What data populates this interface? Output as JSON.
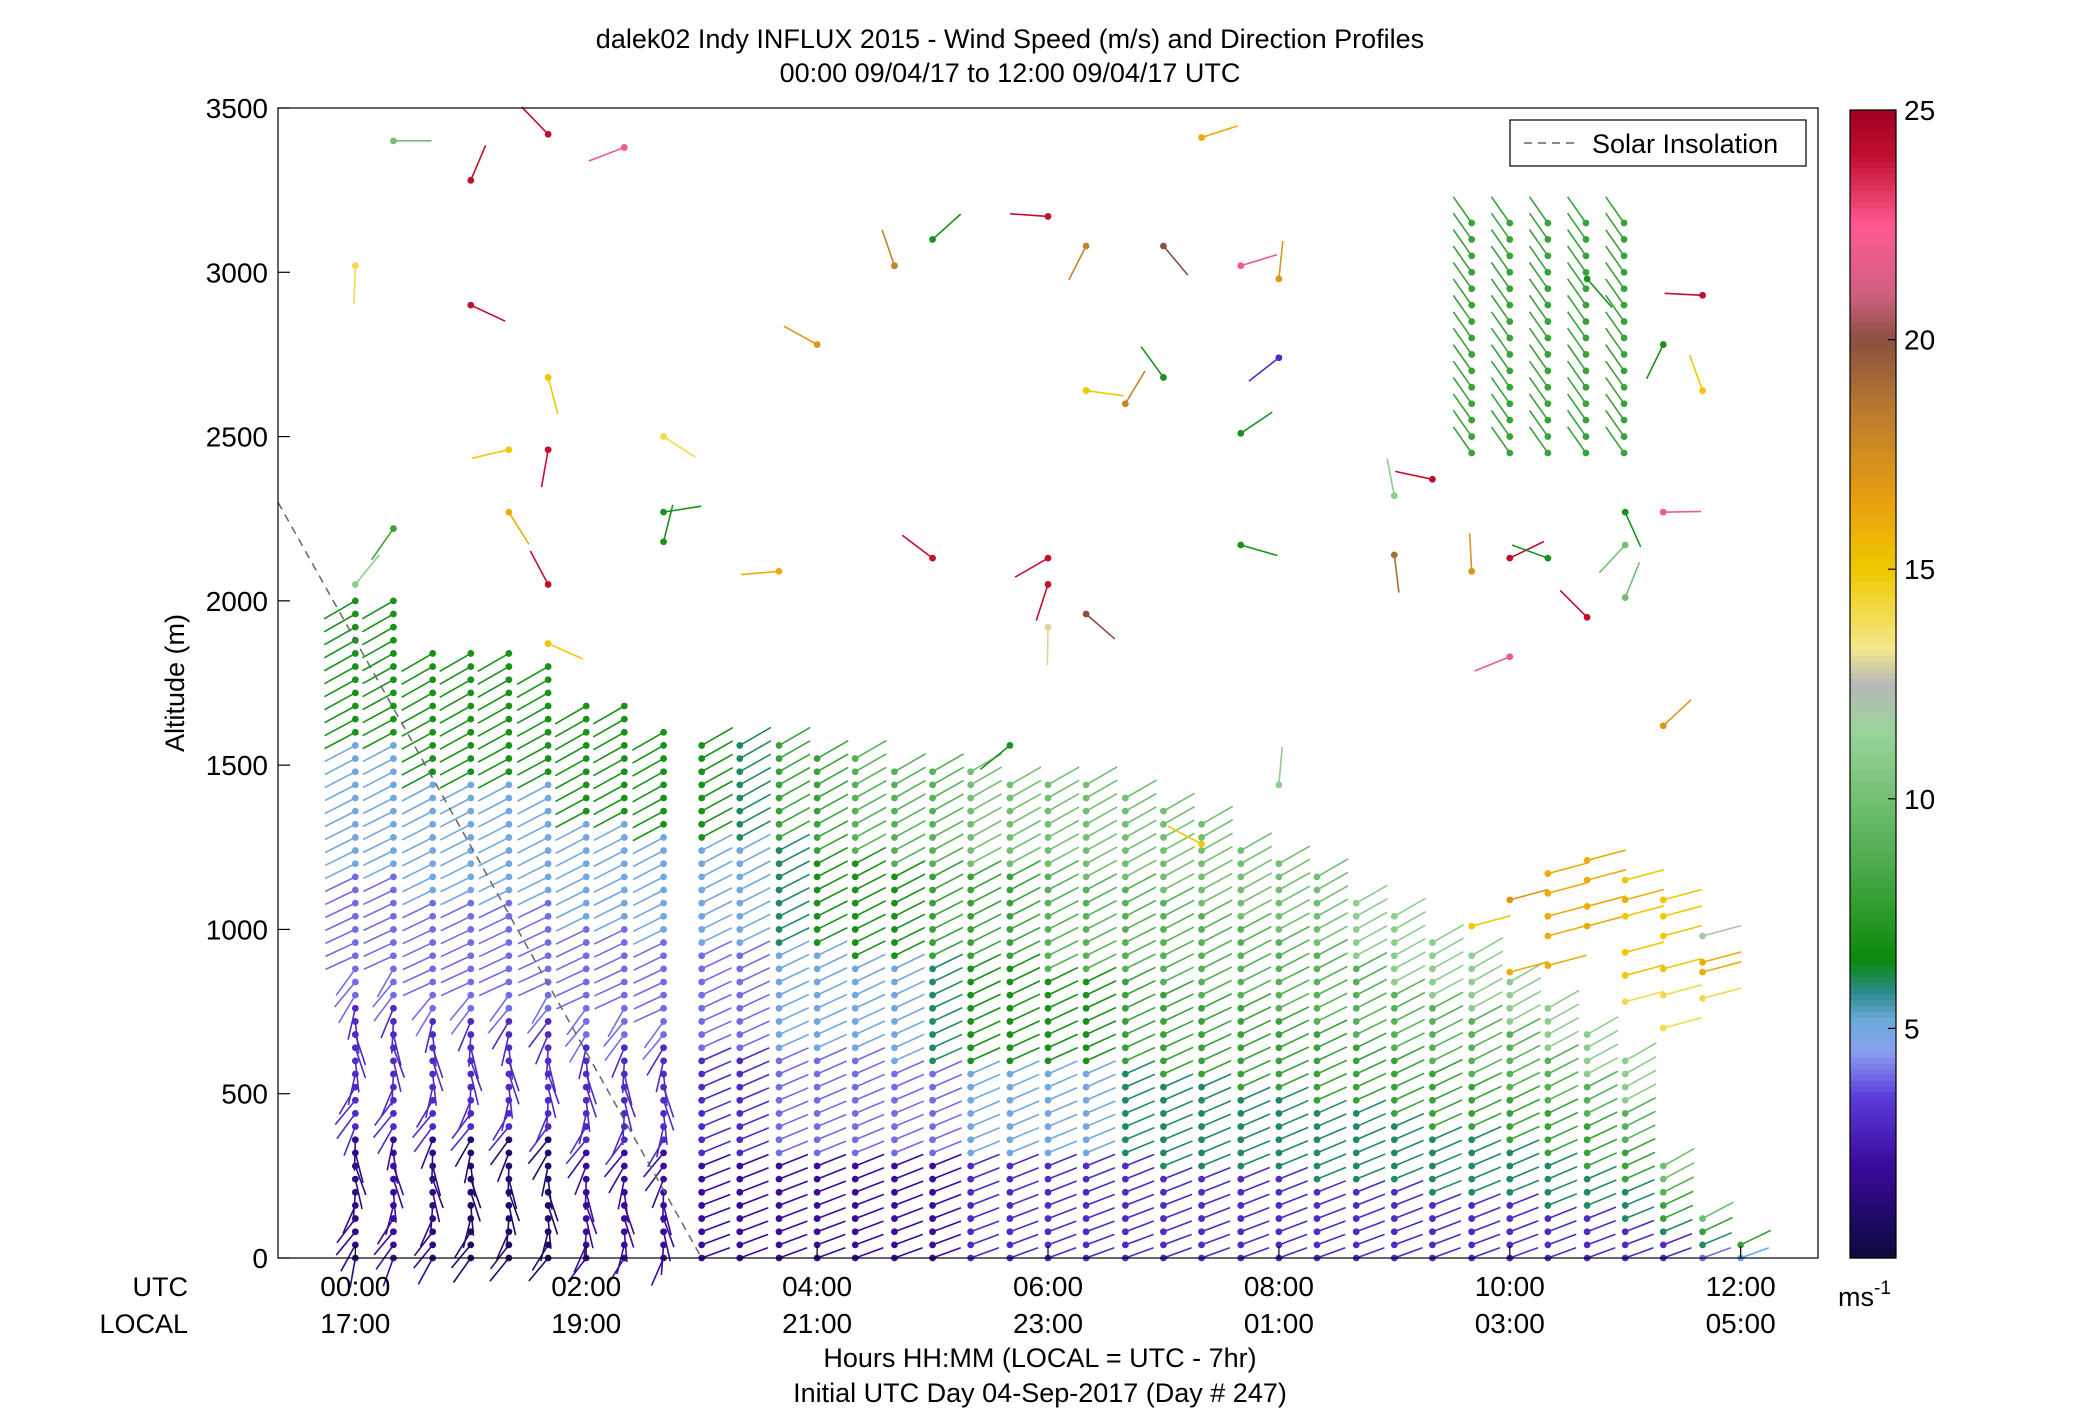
{
  "title_line1": "dalek02 Indy INFLUX 2015 - Wind Speed (m/s) and Direction Profiles",
  "title_line2": "00:00 09/04/17 to 12:00 09/04/17  UTC",
  "ylabel": "Altitude (m)",
  "utc_label": "UTC",
  "local_label": "LOCAL",
  "xlabel": "Hours HH:MM  (LOCAL = UTC - 7hr)",
  "footer": "Initial UTC Day 04-Sep-2017 (Day # 247)",
  "legend_label": "Solar Insolation",
  "colorbar_unit": "ms",
  "colorbar_unit_exp": "-1",
  "colors": {
    "solar_line": "#666666",
    "colorbar": [
      "#0a0a3c",
      "#3a0a9a",
      "#5a3ad8",
      "#8aa0f0",
      "#6aaad8",
      "#2a8a8a",
      "#0a8a0a",
      "#4aaa4a",
      "#9ad49a",
      "#b8b8b8",
      "#f4e88a",
      "#f0c800",
      "#e8a010",
      "#b87a30",
      "#8a5040",
      "#d06080",
      "#ff5a90",
      "#c01030",
      "#a00020"
    ]
  },
  "chart_data": {
    "type": "wind-barb-profile",
    "x_utc_ticks": [
      "00:00",
      "02:00",
      "04:00",
      "06:00",
      "08:00",
      "10:00",
      "12:00"
    ],
    "x_local_ticks": [
      "17:00",
      "19:00",
      "21:00",
      "23:00",
      "01:00",
      "03:00",
      "05:00"
    ],
    "x_range_hours": [
      -0.67,
      12.67
    ],
    "y_ticks": [
      0,
      500,
      1000,
      1500,
      2000,
      2500,
      3000,
      3500
    ],
    "ylim": [
      0,
      3500
    ],
    "colorbar": {
      "ticks": [
        5,
        10,
        15,
        20,
        25
      ],
      "range": [
        0,
        25
      ]
    },
    "solar_insolation": {
      "x": [
        -0.67,
        3.0
      ],
      "y": [
        2300,
        0
      ]
    },
    "columns": [
      {
        "t": 0.0,
        "top": 2000,
        "speed": [
          1.5,
          3,
          4,
          5,
          7
        ]
      },
      {
        "t": 0.33,
        "top": 2000,
        "speed": [
          2,
          3,
          4,
          5,
          7
        ]
      },
      {
        "t": 0.67,
        "top": 1850,
        "speed": [
          1.5,
          3,
          4,
          5,
          7
        ]
      },
      {
        "t": 1.0,
        "top": 1850,
        "speed": [
          1,
          3,
          4,
          5,
          7
        ]
      },
      {
        "t": 1.33,
        "top": 1850,
        "speed": [
          1,
          3,
          4,
          5,
          7
        ]
      },
      {
        "t": 1.67,
        "top": 1820,
        "speed": [
          1,
          3,
          4,
          5,
          7
        ]
      },
      {
        "t": 2.0,
        "top": 1700,
        "speed": [
          2,
          3,
          4,
          5,
          7
        ]
      },
      {
        "t": 2.33,
        "top": 1690,
        "speed": [
          2,
          3,
          4,
          5,
          7
        ]
      },
      {
        "t": 2.67,
        "top": 1620,
        "speed": [
          2,
          3,
          4,
          5,
          7
        ]
      },
      {
        "t": 3.0,
        "top": 1590,
        "speed": [
          2,
          3,
          4,
          5,
          7
        ]
      },
      {
        "t": 3.33,
        "top": 1560,
        "speed": [
          2,
          3,
          4,
          5,
          6
        ]
      },
      {
        "t": 3.67,
        "top": 1560,
        "speed": [
          2,
          4,
          5,
          6,
          8
        ]
      },
      {
        "t": 4.0,
        "top": 1550,
        "speed": [
          2,
          4,
          5,
          7,
          8
        ]
      },
      {
        "t": 4.33,
        "top": 1520,
        "speed": [
          2,
          4,
          5,
          7,
          9
        ]
      },
      {
        "t": 4.67,
        "top": 1500,
        "speed": [
          2,
          4,
          5,
          7,
          9
        ]
      },
      {
        "t": 5.0,
        "top": 1500,
        "speed": [
          2,
          4,
          6,
          8,
          9
        ]
      },
      {
        "t": 5.33,
        "top": 1480,
        "speed": [
          3,
          5,
          7,
          8,
          10
        ]
      },
      {
        "t": 5.67,
        "top": 1470,
        "speed": [
          3,
          5,
          7,
          8,
          10
        ]
      },
      {
        "t": 6.0,
        "top": 1460,
        "speed": [
          3,
          5,
          7,
          9,
          10
        ]
      },
      {
        "t": 6.33,
        "top": 1440,
        "speed": [
          3,
          5,
          7,
          9,
          10
        ]
      },
      {
        "t": 6.67,
        "top": 1420,
        "speed": [
          3,
          6,
          8,
          9,
          10
        ]
      },
      {
        "t": 7.0,
        "top": 1380,
        "speed": [
          3,
          6,
          8,
          9,
          10
        ]
      },
      {
        "t": 7.33,
        "top": 1330,
        "speed": [
          3,
          6,
          8,
          9,
          10
        ]
      },
      {
        "t": 7.67,
        "top": 1270,
        "speed": [
          3,
          6,
          8,
          9,
          10
        ]
      },
      {
        "t": 8.0,
        "top": 1230,
        "speed": [
          3,
          6,
          8,
          9,
          10
        ]
      },
      {
        "t": 8.33,
        "top": 1170,
        "speed": [
          3,
          6,
          8,
          9,
          10
        ]
      },
      {
        "t": 8.67,
        "top": 1110,
        "speed": [
          3,
          6,
          8,
          9,
          11
        ]
      },
      {
        "t": 9.0,
        "top": 1040,
        "speed": [
          3,
          6,
          8,
          9,
          11
        ]
      },
      {
        "t": 9.33,
        "top": 980,
        "speed": [
          3,
          6,
          8,
          9,
          11
        ]
      },
      {
        "t": 9.67,
        "top": 920,
        "speed": [
          3,
          6,
          8,
          9,
          11
        ]
      },
      {
        "t": 10.0,
        "top": 860,
        "speed": [
          3,
          6,
          8,
          9,
          11
        ]
      },
      {
        "t": 10.33,
        "top": 780,
        "speed": [
          3,
          6,
          8,
          9,
          11
        ]
      },
      {
        "t": 10.67,
        "top": 700,
        "speed": [
          3,
          6,
          8,
          9,
          11
        ]
      },
      {
        "t": 11.0,
        "top": 600,
        "speed": [
          3,
          6,
          8,
          9,
          11
        ]
      },
      {
        "t": 11.33,
        "top": 300,
        "speed": [
          3,
          6,
          8,
          9,
          10
        ]
      },
      {
        "t": 11.67,
        "top": 150,
        "speed": [
          4,
          6,
          8,
          9,
          10
        ]
      },
      {
        "t": 12.0,
        "top": 70,
        "speed": [
          5,
          7,
          8,
          9,
          10
        ]
      }
    ],
    "scattered_high_winds": [
      {
        "t": 0.33,
        "alt": 3400,
        "speed": 10
      },
      {
        "t": 1.0,
        "alt": 3280,
        "speed": 24
      },
      {
        "t": 1.67,
        "alt": 3420,
        "speed": 24
      },
      {
        "t": 2.33,
        "alt": 3380,
        "speed": 22
      },
      {
        "t": 0.0,
        "alt": 3020,
        "speed": 14
      },
      {
        "t": 1.0,
        "alt": 2900,
        "speed": 24
      },
      {
        "t": 5.0,
        "alt": 3100,
        "speed": 7
      },
      {
        "t": 4.67,
        "alt": 3020,
        "speed": 18
      },
      {
        "t": 6.0,
        "alt": 3170,
        "speed": 24
      },
      {
        "t": 6.33,
        "alt": 3080,
        "speed": 18
      },
      {
        "t": 7.0,
        "alt": 3080,
        "speed": 20
      },
      {
        "t": 7.67,
        "alt": 3020,
        "speed": 22
      },
      {
        "t": 8.0,
        "alt": 2980,
        "speed": 17
      },
      {
        "t": 4.0,
        "alt": 2780,
        "speed": 17
      },
      {
        "t": 8.0,
        "alt": 2740,
        "speed": 3
      },
      {
        "t": 1.67,
        "alt": 2680,
        "speed": 15
      },
      {
        "t": 6.33,
        "alt": 2640,
        "speed": 15
      },
      {
        "t": 6.67,
        "alt": 2600,
        "speed": 18
      },
      {
        "t": 7.0,
        "alt": 2680,
        "speed": 7
      },
      {
        "t": 1.33,
        "alt": 2460,
        "speed": 15
      },
      {
        "t": 1.67,
        "alt": 2460,
        "speed": 24
      },
      {
        "t": 2.67,
        "alt": 2500,
        "speed": 14
      },
      {
        "t": 7.67,
        "alt": 2510,
        "speed": 7
      },
      {
        "t": 9.0,
        "alt": 2320,
        "speed": 11
      },
      {
        "t": 9.33,
        "alt": 2370,
        "speed": 24
      },
      {
        "t": 0.33,
        "alt": 2220,
        "speed": 8
      },
      {
        "t": 1.33,
        "alt": 2270,
        "speed": 16
      },
      {
        "t": 2.67,
        "alt": 2270,
        "speed": 7
      },
      {
        "t": 2.67,
        "alt": 2180,
        "speed": 7
      },
      {
        "t": 5.0,
        "alt": 2130,
        "speed": 24
      },
      {
        "t": 6.0,
        "alt": 2130,
        "speed": 24
      },
      {
        "t": 9.0,
        "alt": 2140,
        "speed": 19
      },
      {
        "t": 7.67,
        "alt": 2170,
        "speed": 7
      },
      {
        "t": 0.0,
        "alt": 2050,
        "speed": 11
      },
      {
        "t": 1.67,
        "alt": 2050,
        "speed": 24
      },
      {
        "t": 3.67,
        "alt": 2090,
        "speed": 16
      },
      {
        "t": 6.0,
        "alt": 2050,
        "speed": 24
      },
      {
        "t": 6.33,
        "alt": 1960,
        "speed": 20
      },
      {
        "t": 10.0,
        "alt": 2130,
        "speed": 24
      },
      {
        "t": 9.67,
        "alt": 2090,
        "speed": 17
      },
      {
        "t": 10.33,
        "alt": 2130,
        "speed": 7
      },
      {
        "t": 11.0,
        "alt": 2170,
        "speed": 10
      },
      {
        "t": 11.0,
        "alt": 2270,
        "speed": 7
      },
      {
        "t": 11.33,
        "alt": 2270,
        "speed": 22
      },
      {
        "t": 11.0,
        "alt": 2010,
        "speed": 10
      },
      {
        "t": 10.67,
        "alt": 1950,
        "speed": 24
      },
      {
        "t": 10.0,
        "alt": 1830,
        "speed": 22
      },
      {
        "t": 6.0,
        "alt": 1920,
        "speed": 13
      },
      {
        "t": 1.67,
        "alt": 1870,
        "speed": 15
      },
      {
        "t": 11.33,
        "alt": 1620,
        "speed": 17
      },
      {
        "t": 11.67,
        "alt": 2640,
        "speed": 15
      },
      {
        "t": 11.67,
        "alt": 2930,
        "speed": 24
      },
      {
        "t": 11.33,
        "alt": 2780,
        "speed": 7
      },
      {
        "t": 10.67,
        "alt": 2980,
        "speed": 7
      },
      {
        "t": 7.33,
        "alt": 3410,
        "speed": 16
      },
      {
        "t": 8.0,
        "alt": 1440,
        "speed": 11
      },
      {
        "t": 7.33,
        "alt": 1260,
        "speed": 15
      },
      {
        "t": 5.67,
        "alt": 1560,
        "speed": 7
      }
    ],
    "scattered_fast_cluster": [
      {
        "t": 10.0,
        "alt": 1090,
        "speed": 17
      },
      {
        "t": 10.33,
        "alt": 1170,
        "speed": 16
      },
      {
        "t": 10.67,
        "alt": 1210,
        "speed": 16
      },
      {
        "t": 10.33,
        "alt": 1110,
        "speed": 16
      },
      {
        "t": 10.67,
        "alt": 1150,
        "speed": 16
      },
      {
        "t": 11.0,
        "alt": 1150,
        "speed": 15
      },
      {
        "t": 10.33,
        "alt": 1040,
        "speed": 16
      },
      {
        "t": 10.67,
        "alt": 1070,
        "speed": 16
      },
      {
        "t": 11.0,
        "alt": 1090,
        "speed": 16
      },
      {
        "t": 11.33,
        "alt": 1090,
        "speed": 15
      },
      {
        "t": 9.67,
        "alt": 1010,
        "speed": 15
      },
      {
        "t": 10.33,
        "alt": 980,
        "speed": 16
      },
      {
        "t": 10.67,
        "alt": 1010,
        "speed": 16
      },
      {
        "t": 11.0,
        "alt": 1040,
        "speed": 15
      },
      {
        "t": 11.33,
        "alt": 1040,
        "speed": 15
      },
      {
        "t": 10.0,
        "alt": 870,
        "speed": 16
      },
      {
        "t": 10.33,
        "alt": 890,
        "speed": 16
      },
      {
        "t": 11.0,
        "alt": 930,
        "speed": 15
      },
      {
        "t": 11.33,
        "alt": 980,
        "speed": 15
      },
      {
        "t": 11.0,
        "alt": 860,
        "speed": 15
      },
      {
        "t": 11.33,
        "alt": 880,
        "speed": 15
      },
      {
        "t": 11.67,
        "alt": 870,
        "speed": 16
      },
      {
        "t": 11.67,
        "alt": 900,
        "speed": 16
      },
      {
        "t": 11.0,
        "alt": 780,
        "speed": 14
      },
      {
        "t": 11.33,
        "alt": 800,
        "speed": 14
      },
      {
        "t": 11.67,
        "alt": 790,
        "speed": 14
      },
      {
        "t": 11.33,
        "alt": 700,
        "speed": 14
      },
      {
        "t": 11.67,
        "alt": 980,
        "speed": 12
      }
    ],
    "upper_right_cluster": {
      "t_range": [
        9.67,
        11.0
      ],
      "alt_range": [
        2450,
        3180
      ],
      "speed": 8
    }
  }
}
